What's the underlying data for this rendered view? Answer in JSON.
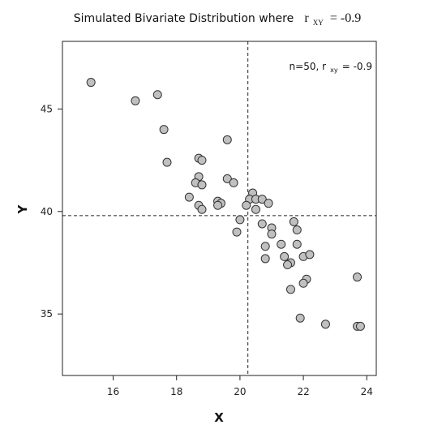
{
  "chart_data": {
    "type": "scatter",
    "title_prefix": "Simulated Bivariate Distribution where",
    "title_r": "r",
    "title_r_sub": "XY",
    "title_r_value": "= -0.9",
    "xlabel": "X",
    "ylabel": "Y",
    "xlim": [
      14.4,
      24.3
    ],
    "ylim": [
      32.0,
      48.3
    ],
    "xticks": [
      16,
      18,
      20,
      22,
      24
    ],
    "xtick_labels": [
      "16",
      "18",
      "20",
      "22",
      "24"
    ],
    "yticks": [
      35,
      40,
      45
    ],
    "ytick_labels": [
      "35",
      "40",
      "45"
    ],
    "mean_x": 20.25,
    "mean_y": 39.8,
    "annotation_prefix": "n=50, r",
    "annotation_sub": "xy",
    "annotation_value": " = -0.9",
    "point_fill": "#c0c0c0",
    "point_stroke": "#333333",
    "points": [
      [
        15.3,
        46.3
      ],
      [
        16.7,
        45.4
      ],
      [
        17.4,
        45.7
      ],
      [
        17.6,
        44.0
      ],
      [
        17.7,
        42.4
      ],
      [
        18.7,
        42.6
      ],
      [
        18.8,
        42.5
      ],
      [
        19.6,
        43.5
      ],
      [
        18.7,
        41.7
      ],
      [
        18.6,
        41.4
      ],
      [
        18.8,
        41.3
      ],
      [
        19.6,
        41.6
      ],
      [
        19.8,
        41.4
      ],
      [
        18.4,
        40.7
      ],
      [
        19.3,
        40.5
      ],
      [
        19.4,
        40.4
      ],
      [
        19.3,
        40.3
      ],
      [
        18.7,
        40.3
      ],
      [
        18.8,
        40.1
      ],
      [
        20.4,
        40.9
      ],
      [
        20.3,
        40.6
      ],
      [
        20.5,
        40.6
      ],
      [
        20.7,
        40.6
      ],
      [
        20.9,
        40.4
      ],
      [
        20.2,
        40.3
      ],
      [
        20.5,
        40.1
      ],
      [
        20.0,
        39.6
      ],
      [
        20.7,
        39.4
      ],
      [
        21.0,
        39.2
      ],
      [
        21.7,
        39.5
      ],
      [
        21.8,
        39.1
      ],
      [
        21.0,
        38.9
      ],
      [
        19.9,
        39.0
      ],
      [
        21.3,
        38.4
      ],
      [
        21.8,
        38.4
      ],
      [
        20.8,
        38.3
      ],
      [
        21.4,
        37.8
      ],
      [
        22.0,
        37.8
      ],
      [
        22.2,
        37.9
      ],
      [
        20.8,
        37.7
      ],
      [
        21.6,
        37.5
      ],
      [
        21.5,
        37.4
      ],
      [
        22.1,
        36.7
      ],
      [
        22.0,
        36.5
      ],
      [
        21.6,
        36.2
      ],
      [
        23.7,
        36.8
      ],
      [
        21.9,
        34.8
      ],
      [
        22.7,
        34.5
      ],
      [
        23.7,
        34.4
      ],
      [
        23.8,
        34.4
      ]
    ]
  }
}
